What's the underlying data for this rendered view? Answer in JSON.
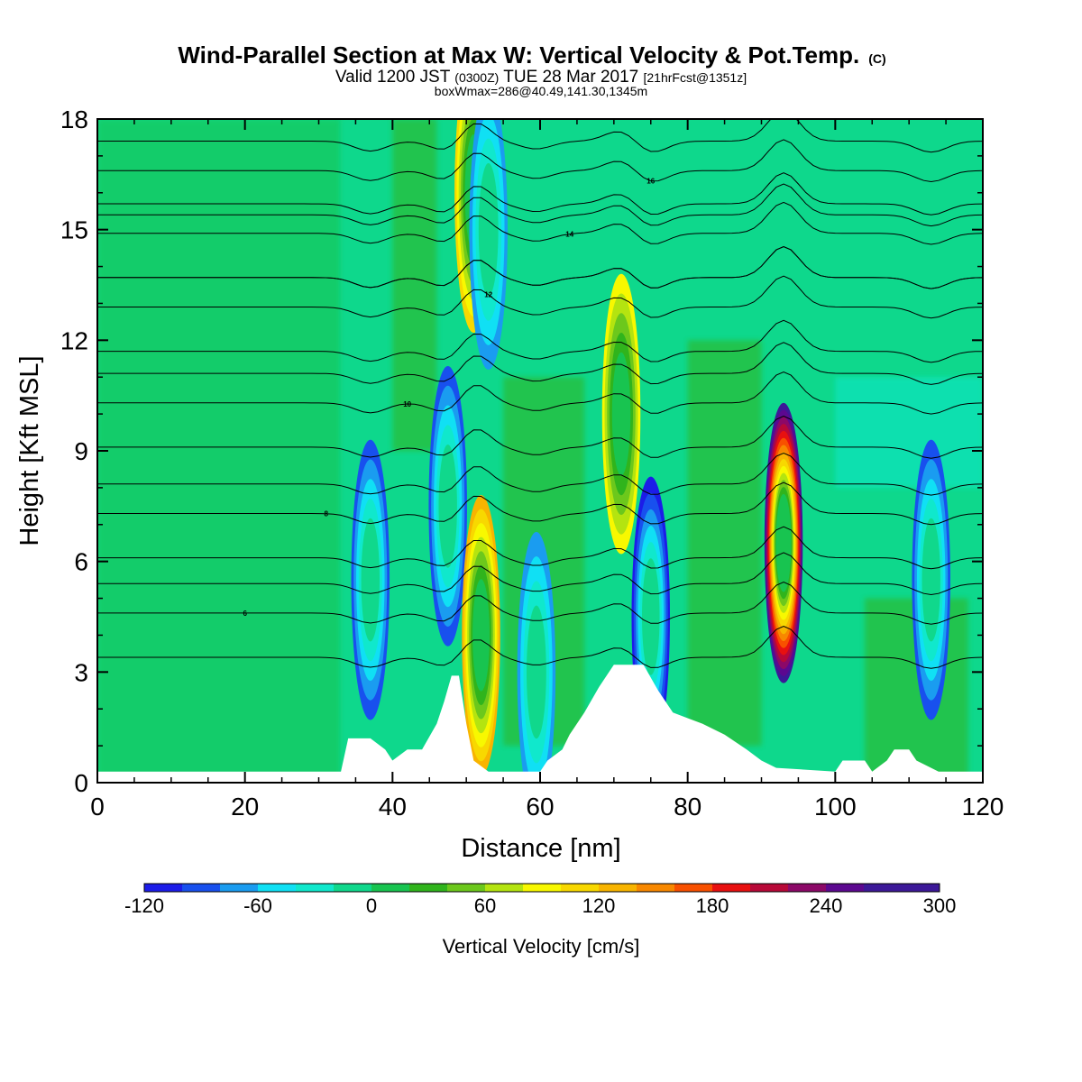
{
  "chart_data": {
    "type": "heatmap",
    "title": "Wind-Parallel Section at Max W: Vertical Velocity & Pot.Temp.",
    "title_mark": "(C)",
    "subtitle_parts": [
      "Valid 1200 JST",
      "(0300Z)",
      "TUE 28 Mar 2017",
      "[21hrFcst@1351z]"
    ],
    "subtitle2": "boxWmax=286@40.49,141.30,1345m",
    "xlabel": "Distance [nm]",
    "ylabel": "Height [Kft MSL]",
    "xlim": [
      0,
      120
    ],
    "ylim": [
      0,
      18
    ],
    "x_ticks": [
      "0",
      "20",
      "40",
      "60",
      "80",
      "100",
      "120"
    ],
    "y_ticks": [
      "0",
      "3",
      "6",
      "9",
      "12",
      "15",
      "18"
    ],
    "colorbar": {
      "title": "Vertical Velocity [cm/s]",
      "min": -120,
      "max": 300,
      "step": 20,
      "tick_labels": [
        "-120",
        "-60",
        "0",
        "60",
        "120",
        "180",
        "240",
        "300"
      ],
      "colors": [
        "#1c1ce8",
        "#1850ee",
        "#1a9cf0",
        "#10e0f4",
        "#10e8cc",
        "#10d88c",
        "#18c450",
        "#30b41c",
        "#6cc81c",
        "#b4e410",
        "#f8f800",
        "#f8d800",
        "#f8b400",
        "#f88800",
        "#f85000",
        "#e81010",
        "#b80838",
        "#8c0868",
        "#5c0890",
        "#3c1898",
        "#3c1898"
      ]
    },
    "isotherms": {
      "unit": "theta",
      "levels": [
        {
          "value": "6",
          "base_height_kft": 4.6
        },
        {
          "value": "8",
          "base_height_kft": 7.3
        },
        {
          "value": "10",
          "base_height_kft": 10.3
        },
        {
          "value": "12",
          "base_height_kft": 12.9
        },
        {
          "value": "14",
          "base_height_kft": 14.9
        },
        {
          "value": "16",
          "base_height_kft": 16.6
        }
      ]
    },
    "vertical_velocity_cells": [
      {
        "x_center_nm": 37,
        "height_center_kft": 5.5,
        "w_cm_s": -90
      },
      {
        "x_center_nm": 47.5,
        "height_center_kft": 7.5,
        "w_cm_s": -100
      },
      {
        "x_center_nm": 52,
        "height_center_kft": 4.0,
        "w_cm_s": 130
      },
      {
        "x_center_nm": 51,
        "height_center_kft": 16.0,
        "w_cm_s": 110
      },
      {
        "x_center_nm": 53,
        "height_center_kft": 15.0,
        "w_cm_s": -70
      },
      {
        "x_center_nm": 59.5,
        "height_center_kft": 3.0,
        "w_cm_s": -70
      },
      {
        "x_center_nm": 71,
        "height_center_kft": 10.0,
        "w_cm_s": 100
      },
      {
        "x_center_nm": 75,
        "height_center_kft": 4.5,
        "w_cm_s": -110
      },
      {
        "x_center_nm": 93,
        "height_center_kft": 6.5,
        "w_cm_s": 280
      },
      {
        "x_center_nm": 113,
        "height_center_kft": 5.5,
        "w_cm_s": -100
      }
    ],
    "terrain_profile_nm_kft": [
      [
        0,
        0.3
      ],
      [
        33,
        0.3
      ],
      [
        34,
        1.2
      ],
      [
        37,
        1.2
      ],
      [
        39,
        0.9
      ],
      [
        40,
        0.6
      ],
      [
        42,
        0.9
      ],
      [
        44,
        0.9
      ],
      [
        46,
        1.6
      ],
      [
        47,
        2.2
      ],
      [
        48,
        2.9
      ],
      [
        49,
        2.9
      ],
      [
        50,
        1.6
      ],
      [
        51,
        0.6
      ],
      [
        53,
        0.3
      ],
      [
        60,
        0.3
      ],
      [
        61,
        0.6
      ],
      [
        63,
        0.9
      ],
      [
        64,
        1.3
      ],
      [
        66,
        1.9
      ],
      [
        68,
        2.6
      ],
      [
        70,
        3.2
      ],
      [
        74,
        3.2
      ],
      [
        76,
        2.5
      ],
      [
        78,
        1.9
      ],
      [
        82,
        1.6
      ],
      [
        85,
        1.3
      ],
      [
        88,
        0.9
      ],
      [
        90,
        0.6
      ],
      [
        92,
        0.4
      ],
      [
        100,
        0.3
      ],
      [
        101,
        0.6
      ],
      [
        104,
        0.6
      ],
      [
        105,
        0.3
      ],
      [
        107,
        0.6
      ],
      [
        108,
        0.9
      ],
      [
        110,
        0.9
      ],
      [
        111,
        0.6
      ],
      [
        114,
        0.3
      ],
      [
        120,
        0.3
      ]
    ]
  }
}
